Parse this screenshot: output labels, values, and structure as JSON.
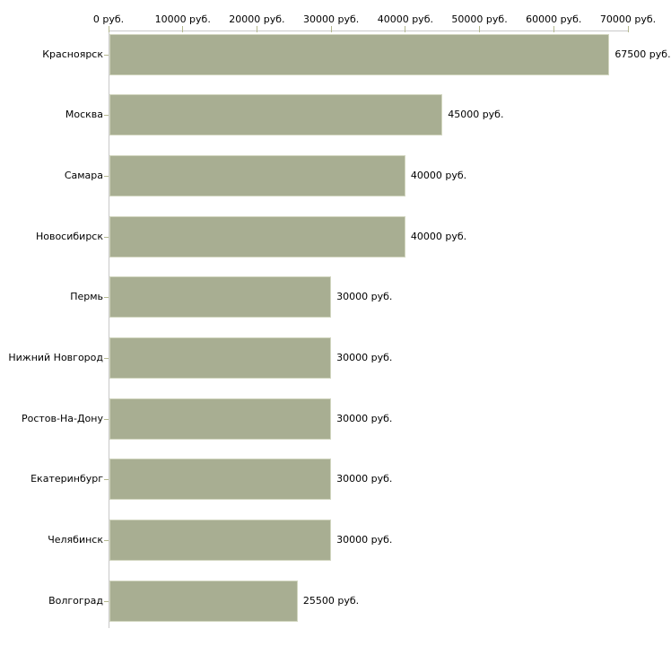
{
  "chart_data": {
    "type": "bar",
    "orientation": "horizontal",
    "title": "",
    "xlabel": "",
    "ylabel": "",
    "unit": "руб.",
    "categories": [
      "Красноярск",
      "Москва",
      "Самара",
      "Новосибирск",
      "Пермь",
      "Нижний Новгород",
      "Ростов-На-Дону",
      "Екатеринбург",
      "Челябинск",
      "Волгоград"
    ],
    "values": [
      67500,
      45000,
      40000,
      40000,
      30000,
      30000,
      30000,
      30000,
      30000,
      25500
    ],
    "value_labels": [
      "67500 руб.",
      "45000 руб.",
      "40000 руб.",
      "40000 руб.",
      "30000 руб.",
      "30000 руб.",
      "30000 руб.",
      "30000 руб.",
      "30000 руб.",
      "25500 руб."
    ],
    "xlim": [
      0,
      70000
    ],
    "x_ticks": [
      0,
      10000,
      20000,
      30000,
      40000,
      50000,
      60000,
      70000
    ],
    "x_tick_labels": [
      "0 руб.",
      "10000 руб.",
      "20000 руб.",
      "30000 руб.",
      "40000 руб.",
      "50000 руб.",
      "60000 руб.",
      "70000 руб."
    ],
    "grid": false,
    "legend": false,
    "colors": {
      "bar_fill": "#a8ae92",
      "bar_border": "#d2d6c0",
      "axis_line": "#c9c9c9",
      "tick_mark": "#b4b88e",
      "text": "#000000",
      "background": "#ffffff"
    }
  }
}
